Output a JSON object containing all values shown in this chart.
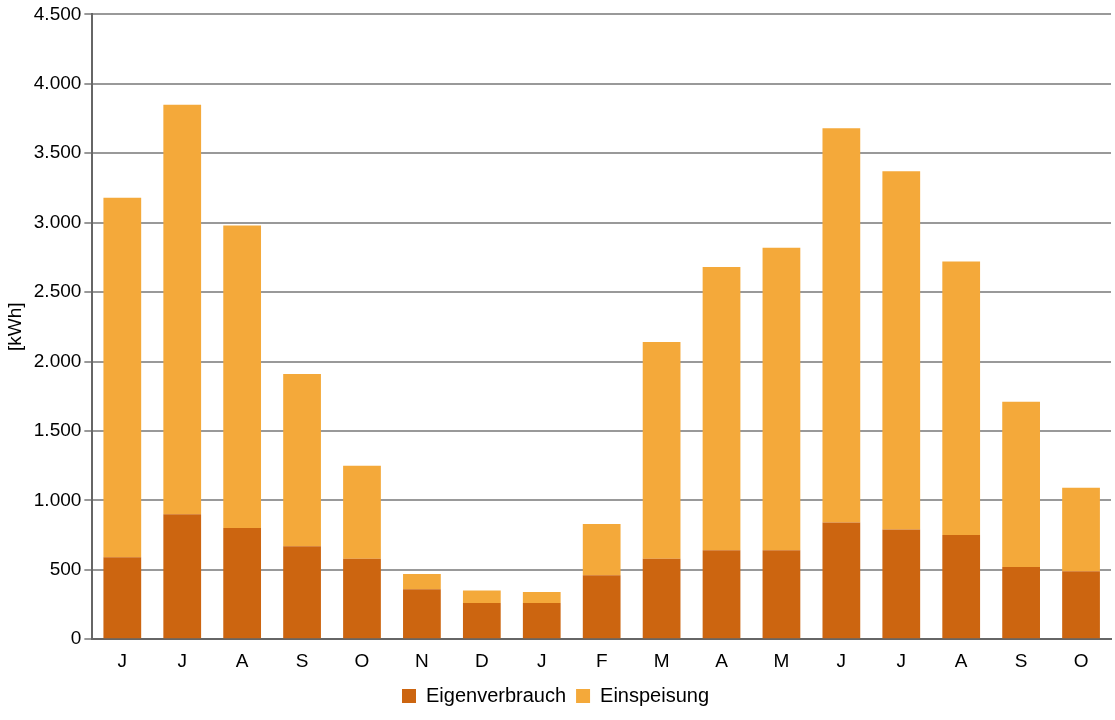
{
  "chart_data": {
    "type": "bar",
    "stacked": true,
    "ylabel": "[kWh]",
    "categories": [
      "J",
      "J",
      "A",
      "S",
      "O",
      "N",
      "D",
      "J",
      "F",
      "M",
      "A",
      "M",
      "J",
      "J",
      "A",
      "S",
      "O"
    ],
    "series": [
      {
        "name": "Eigenverbrauch",
        "color": "#cc6510",
        "values": [
          590,
          900,
          800,
          670,
          580,
          360,
          260,
          260,
          460,
          580,
          640,
          640,
          840,
          790,
          750,
          520,
          490
        ]
      },
      {
        "name": "Einspeisung",
        "color": "#f4a93a",
        "values": [
          2590,
          2950,
          2180,
          1240,
          670,
          110,
          90,
          80,
          370,
          1560,
          2040,
          2180,
          2840,
          2580,
          1970,
          1190,
          600
        ]
      }
    ],
    "ylim": [
      0,
      4500
    ],
    "yticks": [
      {
        "value": 0,
        "label": "0"
      },
      {
        "value": 500,
        "label": "500"
      },
      {
        "value": 1000,
        "label": "1.000"
      },
      {
        "value": 1500,
        "label": "1.500"
      },
      {
        "value": 2000,
        "label": "2.000"
      },
      {
        "value": 2500,
        "label": "2.500"
      },
      {
        "value": 3000,
        "label": "3.000"
      },
      {
        "value": 3500,
        "label": "3.500"
      },
      {
        "value": 4000,
        "label": "4.000"
      },
      {
        "value": 4500,
        "label": "4.500"
      }
    ],
    "grid": "y",
    "legend": "bottom"
  }
}
